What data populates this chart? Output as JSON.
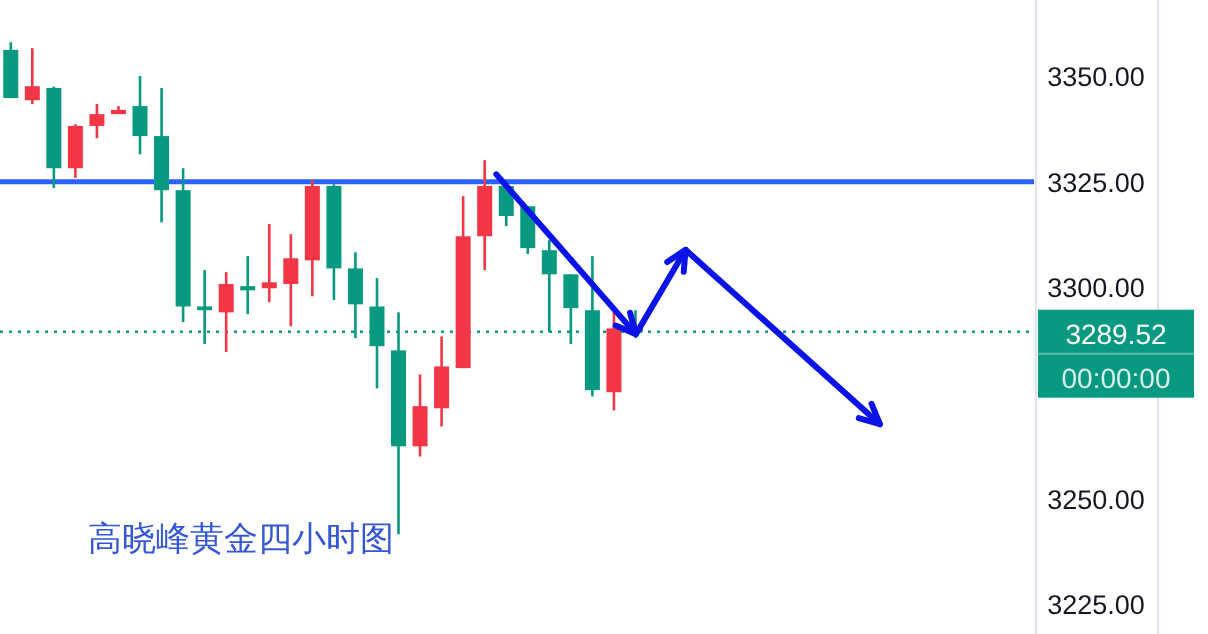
{
  "chart_data": {
    "type": "candlestick",
    "categories": [
      null,
      null,
      null,
      null,
      null,
      null,
      null,
      null,
      null,
      null,
      null,
      null,
      null,
      null,
      null,
      null,
      null,
      null,
      null,
      null,
      null,
      null,
      null,
      null,
      null,
      null,
      null,
      null,
      null,
      null,
      null,
      null,
      null,
      null,
      null,
      null,
      null,
      null,
      null,
      null,
      null,
      null,
      null,
      null,
      null,
      null,
      null,
      null
    ],
    "ohlc": [
      [
        3356.2,
        3358,
        3344.8,
        3344.8
      ],
      [
        3344.3,
        3356.6,
        3343.4,
        3347.6
      ],
      [
        3347.2,
        3347.5,
        3323.5,
        3328.2
      ],
      [
        3328.2,
        3338.6,
        3325.9,
        3338.2
      ],
      [
        3338.2,
        3343.4,
        3335.3,
        3341.0
      ],
      [
        3341.0,
        3342.9,
        3341.0,
        3342.0
      ],
      [
        3342.9,
        3350.0,
        3331.5,
        3335.8
      ],
      [
        3335.8,
        3347.2,
        3315.4,
        3323.0
      ],
      [
        3323.0,
        3328.2,
        3291.8,
        3295.5
      ],
      [
        3295.5,
        3304.1,
        3286.6,
        3294.6
      ],
      [
        3294.1,
        3303.6,
        3284.7,
        3300.8
      ],
      [
        3300.3,
        3307.4,
        3293.7,
        3299.3
      ],
      [
        3299.8,
        3315.0,
        3296.5,
        3301.2
      ],
      [
        3300.8,
        3312.6,
        3290.8,
        3306.9
      ],
      [
        3306.4,
        3325.4,
        3297.9,
        3324.0
      ],
      [
        3324.0,
        3324.4,
        3297.0,
        3304.5
      ],
      [
        3304.5,
        3308.3,
        3288.0,
        3296.0
      ],
      [
        3295.5,
        3302.2,
        3276.1,
        3286.1
      ],
      [
        3285.1,
        3294.1,
        3241.6,
        3262.4
      ],
      [
        3262.4,
        3279.4,
        3260.0,
        3271.9
      ],
      [
        3271.4,
        3288.4,
        3267.1,
        3281.3
      ],
      [
        3280.9,
        3321.6,
        3280.9,
        3312.1
      ],
      [
        3312.1,
        3330.1,
        3304.1,
        3324.0
      ],
      [
        3324.0,
        3324.5,
        3314.5,
        3316.9
      ],
      [
        3319.2,
        3319.2,
        3307.9,
        3309.3
      ],
      [
        3308.8,
        3311.2,
        3289.4,
        3303.1
      ],
      [
        3303.1,
        3303.1,
        3286.6,
        3295.1
      ],
      [
        3294.6,
        3307.4,
        3274.2,
        3275.7
      ],
      [
        3275.2,
        3294.6,
        3270.9,
        3290.3
      ],
      [
        3290.3,
        3294.6,
        3288.0,
        3289.52
      ],
      null,
      null,
      null,
      null,
      null,
      null,
      null,
      null,
      null,
      null,
      null,
      null,
      null,
      null,
      null,
      null,
      null,
      null
    ],
    "colors": [
      "#089981",
      "#f23645",
      "#089981",
      "#f23645",
      "#f23645",
      "#f23645",
      "#089981",
      "#089981",
      "#089981",
      "#089981",
      "#f23645",
      "#089981",
      "#f23645",
      "#f23645",
      "#f23645",
      "#089981",
      "#089981",
      "#089981",
      "#089981",
      "#f23645",
      "#f23645",
      "#f23645",
      "#f23645",
      "#089981",
      "#089981",
      "#089981",
      "#089981",
      "#089981",
      "#f23645",
      "#089981",
      null,
      null,
      null,
      null,
      null,
      null,
      null,
      null,
      null,
      null,
      null,
      null,
      null,
      null,
      null,
      null,
      null,
      null
    ],
    "ylim": [
      3218,
      3368
    ],
    "yticks": [
      {
        "value": 3225,
        "label": "3225.00"
      },
      {
        "value": 3250,
        "label": "3250.00"
      },
      {
        "value": 3300,
        "label": "3300.00"
      },
      {
        "value": 3325,
        "label": "3325.00"
      },
      {
        "value": 3350,
        "label": "3350.00"
      }
    ],
    "tick_labels": "y",
    "ref_lines": [
      {
        "axis": "y",
        "value": 3325,
        "label": null,
        "color": "#2962ff",
        "line_style": "solid"
      },
      {
        "axis": "y",
        "value": 3289.52,
        "label": "3289.52",
        "color": "#089981",
        "line_style": "dotted"
      }
    ],
    "annotations": [
      "高晓峰黄金四小时图",
      "00:00:00"
    ]
  }
}
